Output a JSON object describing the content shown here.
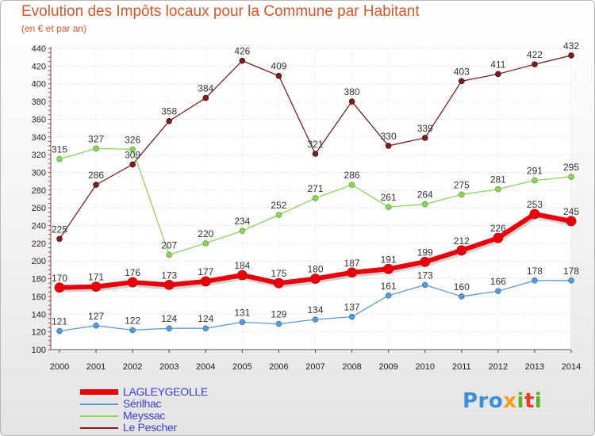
{
  "header": {
    "title": "Evolution des Impôts locaux pour la Commune par Habitant",
    "subtitle": "(en € et par an)"
  },
  "logo": {
    "parts": [
      "Pro",
      "x",
      "i",
      "t",
      "i"
    ],
    "colors": [
      "#3b8ed8",
      "#f0a01c",
      "#5bb030",
      "#e4402c",
      "#5bb030"
    ]
  },
  "chart_data": {
    "type": "line",
    "title": "Evolution des Impôts locaux pour la Commune par Habitant",
    "subtitle": "(en € et par an)",
    "xlabel": "",
    "ylabel": "",
    "x": [
      "2000",
      "2001",
      "2002",
      "2003",
      "2004",
      "2005",
      "2006",
      "2007",
      "2008",
      "2009",
      "2010",
      "2011",
      "2012",
      "2013",
      "2014"
    ],
    "ylim": [
      100,
      440
    ],
    "yticks": [
      100,
      120,
      140,
      160,
      180,
      200,
      220,
      240,
      260,
      280,
      300,
      320,
      340,
      360,
      380,
      400,
      420,
      440
    ],
    "grid": "horizontal",
    "legend_position": "bottom-left",
    "series": [
      {
        "name": "LAGLEYGEOLLE",
        "color": "#e8000b",
        "values": [
          170,
          171,
          176,
          173,
          177,
          184,
          175,
          180,
          187,
          191,
          199,
          212,
          226,
          253,
          245
        ],
        "labels": [
          "170",
          "171",
          "176",
          "173",
          "177",
          "184",
          "175",
          "180",
          "187",
          "191",
          "199",
          "212",
          "226",
          "253",
          "245"
        ]
      },
      {
        "name": "Sérilhac",
        "color": "#5b9bd5",
        "values": [
          121,
          127,
          122,
          124,
          124,
          131,
          129,
          134,
          137,
          161,
          173,
          160,
          166,
          178,
          178
        ],
        "labels": [
          "121",
          "127",
          "122",
          "124",
          "124",
          "131",
          "129",
          "134",
          "137",
          "161",
          "173",
          "160",
          "166",
          "178",
          "178"
        ]
      },
      {
        "name": "Meyssac",
        "color": "#8dd35f",
        "values": [
          315,
          327,
          326,
          207,
          220,
          234,
          252,
          271,
          286,
          261,
          264,
          275,
          281,
          291,
          295
        ],
        "labels": [
          "315",
          "327",
          "326",
          "207",
          "220",
          "234",
          "252",
          "271",
          "286",
          "261",
          "264",
          "275",
          "281",
          "291",
          "295"
        ]
      },
      {
        "name": "Le Pescher",
        "color": "#7a2020",
        "values": [
          225,
          286,
          309,
          358,
          384,
          426,
          409,
          321,
          380,
          330,
          339,
          403,
          411,
          422,
          432
        ],
        "labels": [
          "225",
          "286",
          "309",
          "358",
          "384",
          "426",
          "409",
          "321",
          "380",
          "330",
          "339",
          "403",
          "411",
          "422",
          "432"
        ]
      }
    ]
  }
}
